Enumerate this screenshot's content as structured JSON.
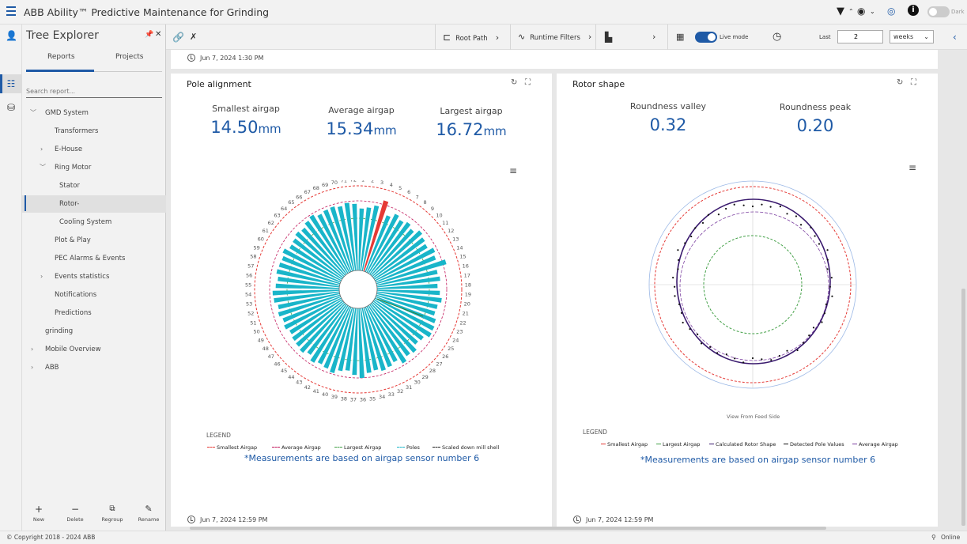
{
  "app": {
    "title": "ABB Ability™ Predictive Maintenance for Grinding",
    "dark_label": "Dark",
    "accent": "#1f5aa6"
  },
  "tree": {
    "title": "Tree Explorer",
    "tabs": [
      "Reports",
      "Projects"
    ],
    "search_placeholder": "Search report...",
    "nodes": [
      {
        "label": "GMD System",
        "caret": "﹀"
      },
      {
        "label": "Transformers",
        "caret": ""
      },
      {
        "label": "E-House",
        "caret": "›"
      },
      {
        "label": "Ring Motor",
        "caret": "﹀"
      },
      {
        "label": "Stator",
        "caret": ""
      },
      {
        "label": "Rotor-",
        "caret": ""
      },
      {
        "label": "Cooling System",
        "caret": ""
      },
      {
        "label": "Plot & Play",
        "caret": ""
      },
      {
        "label": "PEC Alarms & Events",
        "caret": ""
      },
      {
        "label": "Events statistics",
        "caret": "›"
      },
      {
        "label": "Notifications",
        "caret": ""
      },
      {
        "label": "Predictions",
        "caret": ""
      },
      {
        "label": "grinding",
        "caret": ""
      },
      {
        "label": "Mobile Overview",
        "caret": "›"
      },
      {
        "label": "ABB",
        "caret": "›"
      }
    ],
    "actions": [
      {
        "label": "New",
        "icon": "plus-icon"
      },
      {
        "label": "Delete",
        "icon": "minus-icon"
      },
      {
        "label": "Regroup",
        "icon": "regroup-icon"
      },
      {
        "label": "Rename",
        "icon": "pencil-icon"
      }
    ]
  },
  "toolbar": {
    "root_path": "Root Path",
    "runtime_filters": "Runtime Filters",
    "live_mode": "Live mode",
    "last_label": "Last",
    "last_value": "2",
    "period": "weeks"
  },
  "timestamps": {
    "top": "Jun 7, 2024 1:30 PM",
    "pole": "Jun 7, 2024 12:59 PM",
    "rotor": "Jun 7, 2024 12:59 PM"
  },
  "pole": {
    "title": "Pole alignment",
    "metrics": [
      {
        "label": "Smallest airgap",
        "value": "14.50",
        "unit": "mm"
      },
      {
        "label": "Average airgap",
        "value": "15.34",
        "unit": "mm"
      },
      {
        "label": "Largest airgap",
        "value": "16.72",
        "unit": "mm"
      }
    ],
    "legend_title": "LEGEND",
    "legend": [
      {
        "label": "Smallest Airgap",
        "color": "#e53935",
        "style": "dashed"
      },
      {
        "label": "Average Airgap",
        "color": "#c2185b",
        "style": "dashed"
      },
      {
        "label": "Largest Airgap",
        "color": "#43a047",
        "style": "dashed"
      },
      {
        "label": "Poles",
        "color": "#19b5c9",
        "style": "dashed"
      },
      {
        "label": "Scaled down mill shell",
        "color": "#222222",
        "style": "dashed"
      }
    ],
    "note": "*Measurements are based on airgap sensor number 6"
  },
  "rotor": {
    "title": "Rotor shape",
    "metrics": [
      {
        "label": "Roundness valley",
        "value": "0.32"
      },
      {
        "label": "Roundness peak",
        "value": "0.20"
      }
    ],
    "caption": "View From Feed Side",
    "legend_title": "LEGEND",
    "legend": [
      {
        "label": "Smallest Airgap",
        "color": "#e53935",
        "style": "solid"
      },
      {
        "label": "Largest Airgap",
        "color": "#43a047",
        "style": "solid"
      },
      {
        "label": "Calculated Rotor Shape",
        "color": "#3a1a6e",
        "style": "solid"
      },
      {
        "label": "Detected Pole Values",
        "color": "#111111",
        "style": "solid"
      },
      {
        "label": "Average Airgap",
        "color": "#7b3fa0",
        "style": "solid"
      }
    ],
    "note": "*Measurements are based on airgap sensor number 6"
  },
  "footer": {
    "copyright": "© Copyright 2018 - 2024 ABB",
    "status": "Online"
  },
  "chart_data": [
    {
      "type": "polar-bar",
      "title": "Pole alignment",
      "categories": [
        "1",
        "2",
        "3",
        "4",
        "5",
        "6",
        "7",
        "8",
        "9",
        "10",
        "11",
        "12",
        "13",
        "14",
        "15",
        "16",
        "17",
        "18",
        "19",
        "20",
        "21",
        "22",
        "23",
        "24",
        "25",
        "26",
        "27",
        "28",
        "29",
        "30",
        "31",
        "32",
        "33",
        "34",
        "35",
        "36",
        "37",
        "38",
        "39",
        "40",
        "41",
        "42",
        "43",
        "44",
        "45",
        "46",
        "47",
        "48",
        "49",
        "50",
        "51",
        "52",
        "53",
        "54",
        "55",
        "56",
        "57",
        "58",
        "59",
        "60",
        "61",
        "62",
        "63",
        "64",
        "65",
        "66",
        "67",
        "68",
        "69",
        "70",
        "71",
        "72"
      ],
      "highlighted_pole": "4",
      "series": [
        {
          "name": "Poles",
          "values": [
            0.8,
            0.82,
            0.86,
            0.95,
            0.78,
            0.84,
            0.8,
            0.83,
            0.79,
            0.85,
            0.82,
            0.8,
            0.86,
            0.83,
            0.94,
            0.8,
            0.82,
            0.78,
            0.81,
            0.84,
            0.8,
            0.79,
            0.83,
            0.85,
            0.86,
            0.8,
            0.78,
            0.84,
            0.82,
            0.87,
            0.8,
            0.83,
            0.85,
            0.82,
            0.84,
            0.9,
            0.86,
            0.81,
            0.83,
            0.88,
            0.85,
            0.83,
            0.86,
            0.8,
            0.84,
            0.82,
            0.81,
            0.79,
            0.82,
            0.8,
            0.83,
            0.81,
            0.85,
            0.86,
            0.82,
            0.8,
            0.83,
            0.82,
            0.81,
            0.84,
            0.79,
            0.8,
            0.83,
            0.81,
            0.85,
            0.88,
            0.84,
            0.86,
            0.87,
            0.85,
            0.88,
            0.86
          ]
        }
      ]
    },
    {
      "type": "scatter",
      "title": "Rotor shape",
      "series": [
        {
          "name": "Detected Pole Values",
          "values": [
            0.96,
            0.99,
            0.98,
            1.02,
            0.97,
            1.0,
            0.95,
            1.01,
            0.98,
            0.97,
            1.03,
            0.99,
            0.96,
            1.0,
            0.98,
            1.02,
            0.97,
            0.99,
            1.01,
            0.96,
            0.98,
            1.0,
            1.03,
            0.97,
            0.99,
            1.01,
            0.98,
            0.96,
            1.02,
            0.99,
            0.97,
            1.0,
            0.98,
            1.01,
            0.96,
            0.99,
            1.02,
            0.98,
            0.97,
            1.0,
            0.99,
            1.01,
            0.96,
            0.98,
            1.03,
            0.99,
            0.97,
            1.0,
            0.98,
            1.02,
            0.96,
            0.99,
            1.01,
            0.98
          ]
        }
      ]
    }
  ]
}
